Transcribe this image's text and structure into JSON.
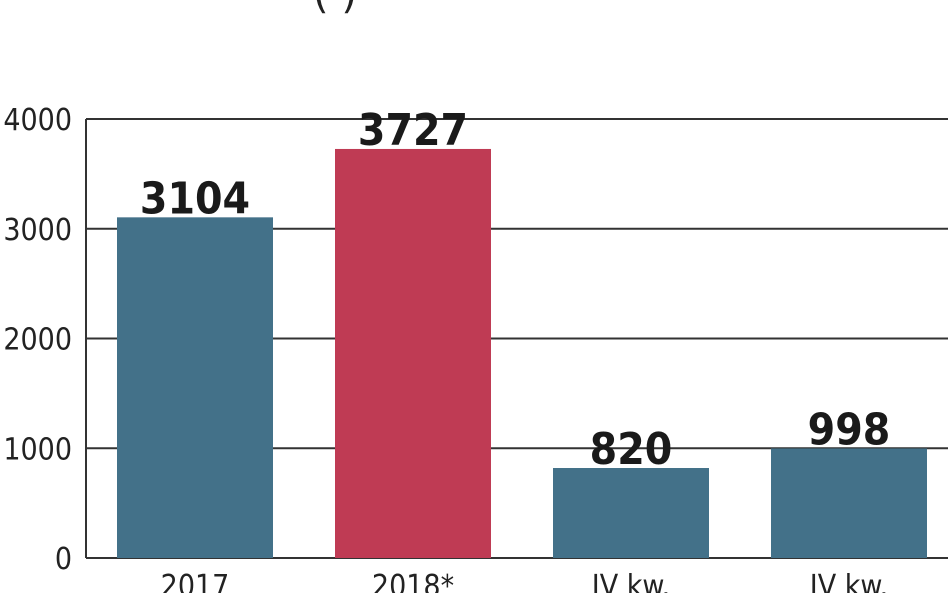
{
  "chart_data": {
    "type": "bar",
    "title_fragment": "(      )",
    "categories": [
      "2017",
      "2018*",
      "IV kw.",
      "IV kw."
    ],
    "values": [
      3104,
      3727,
      820,
      998
    ],
    "value_labels": [
      "3104",
      "3727",
      "820",
      "998"
    ],
    "yticks": [
      "0",
      "1000",
      "2000",
      "3000",
      "4000"
    ],
    "ylim": [
      0,
      4000
    ],
    "grid": true,
    "colors": {
      "default_bar": "#437189",
      "highlight_bar": "#bf3b54",
      "gridline": "#333333",
      "text": "#1a1a1a"
    },
    "highlight_index": 1
  }
}
